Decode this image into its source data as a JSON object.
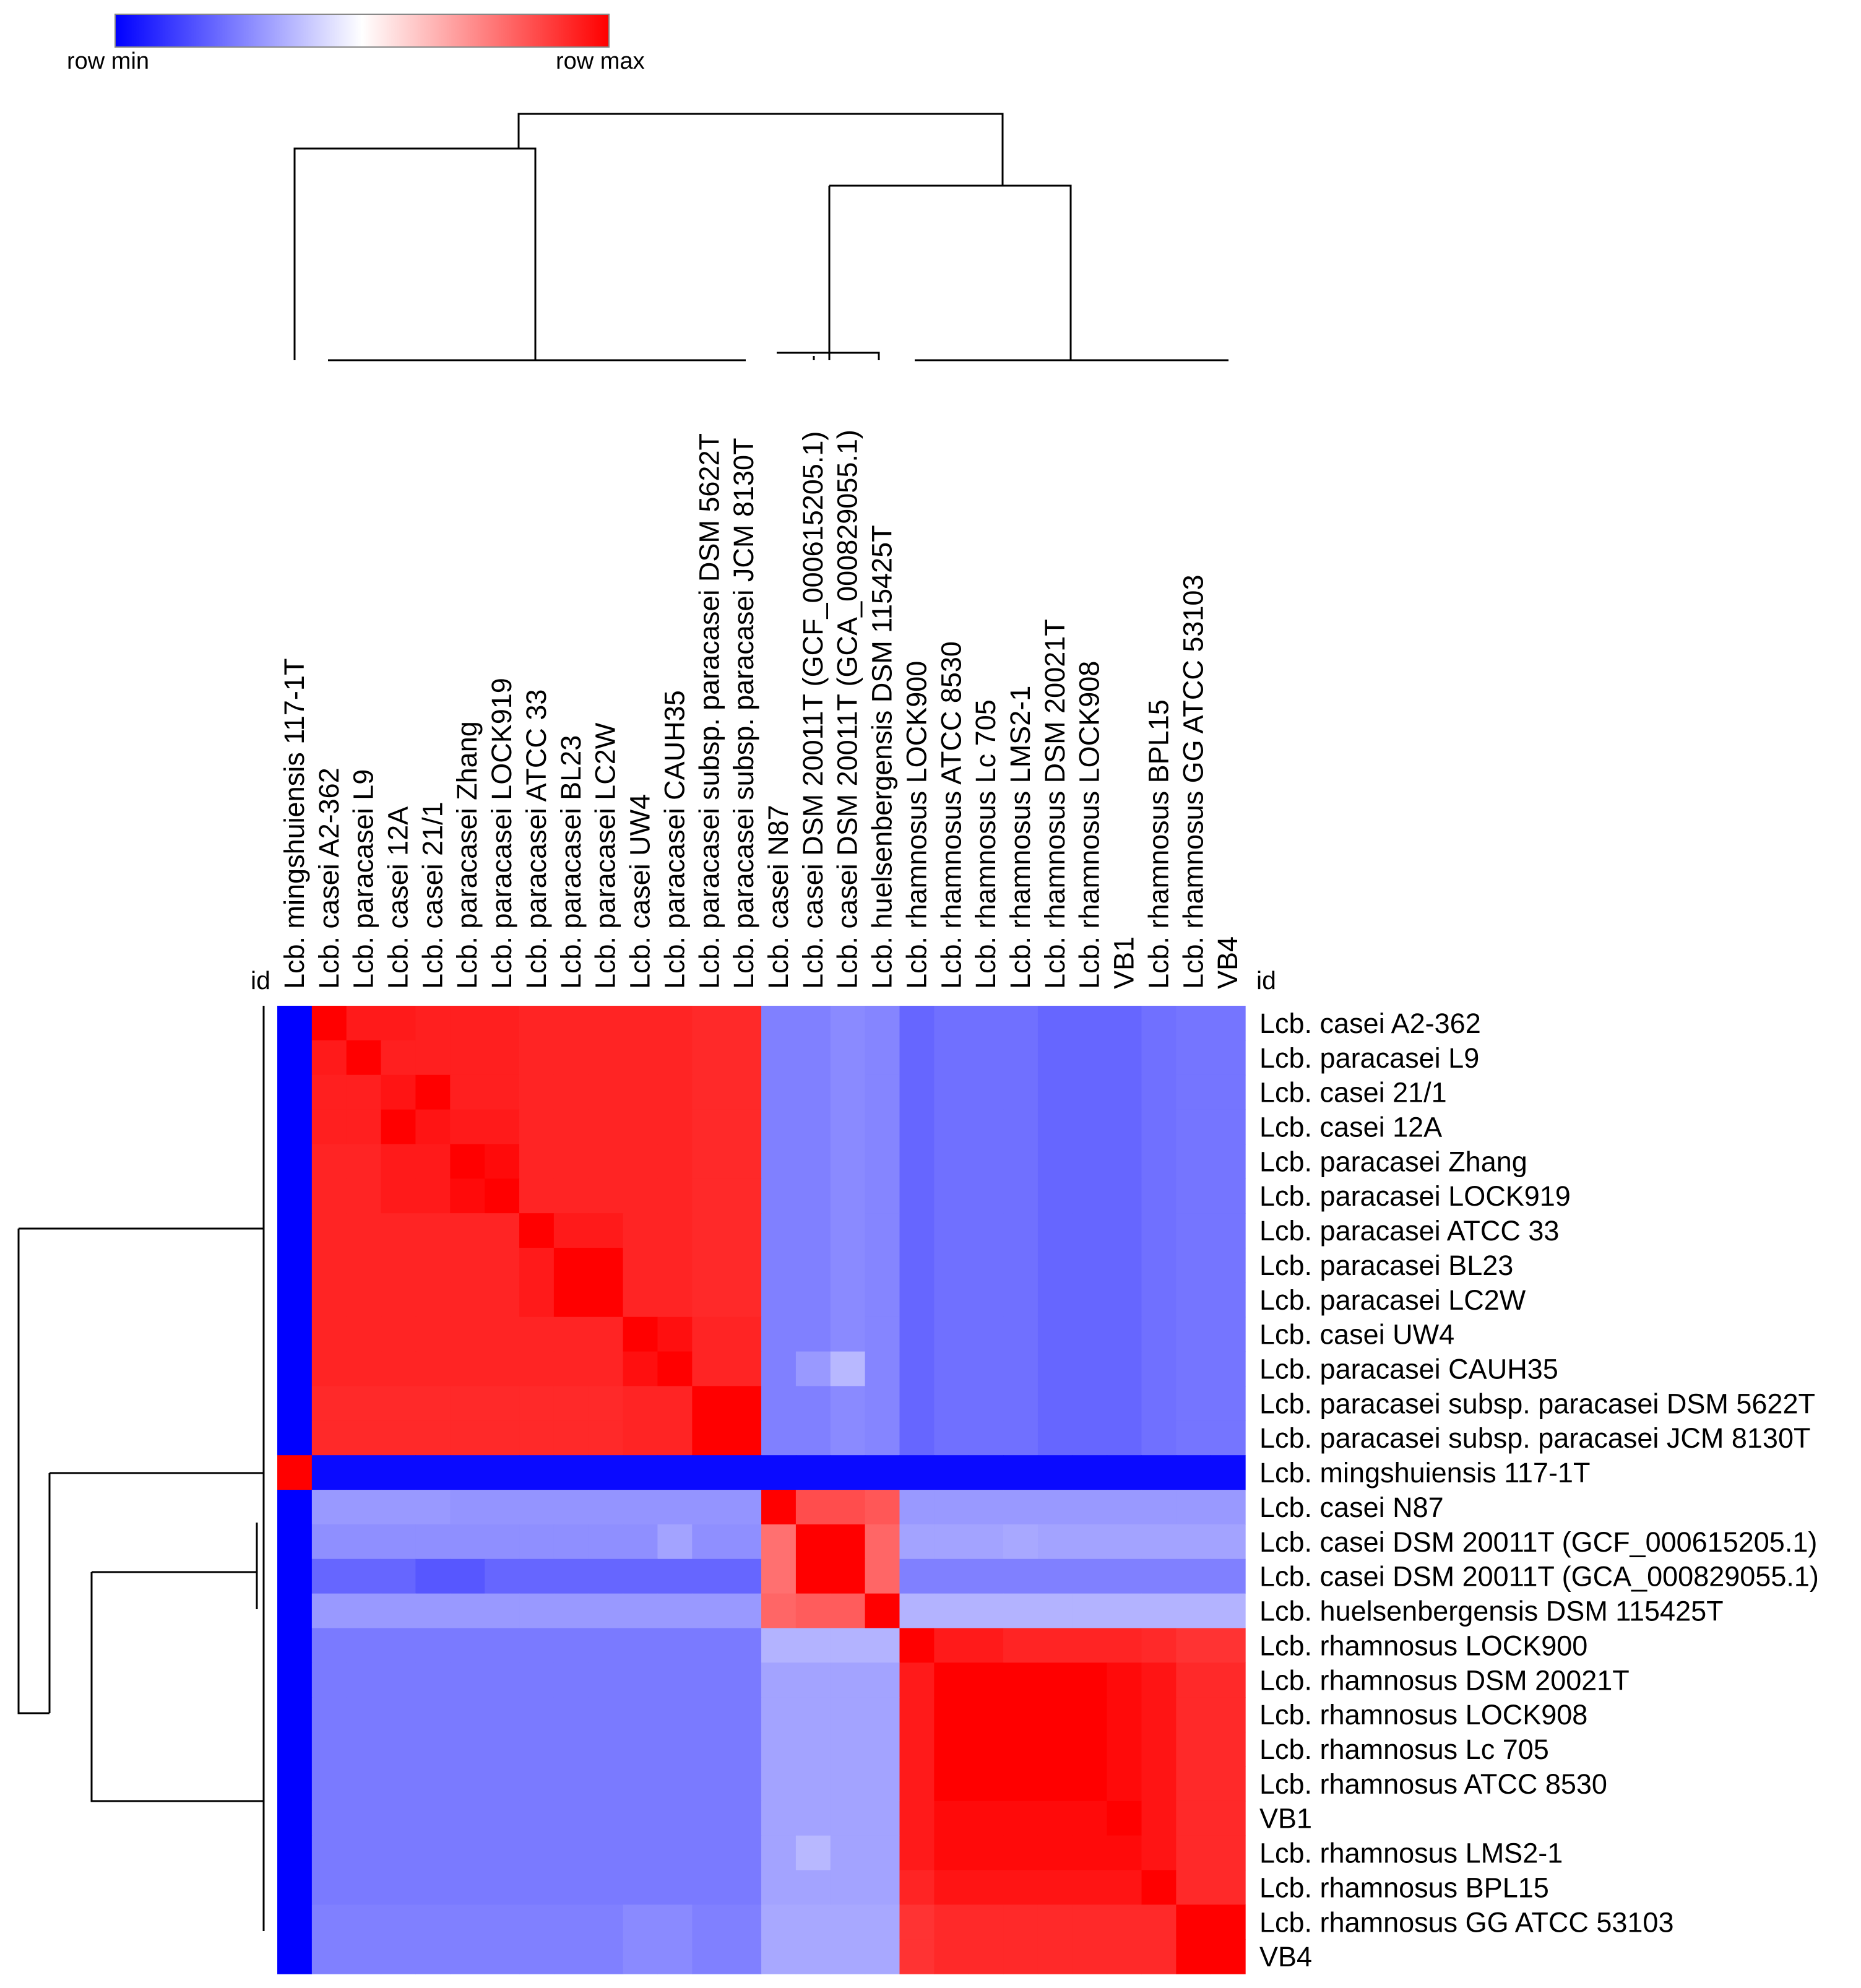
{
  "legend": {
    "min_label": "row min",
    "max_label": "row max",
    "min_color": "#0000ff",
    "mid_color": "#ffffff",
    "max_color": "#ff0000"
  },
  "id_label": "id",
  "chart_data": {
    "type": "heatmap",
    "title": "",
    "value_scale": "row-normalized (0 = row min, 1 = row max)",
    "columns": [
      "Lcb. mingshuiensis 117-1T",
      "Lcb. casei A2-362",
      "Lcb. paracasei L9",
      "Lcb. casei 12A",
      "Lcb. casei 21/1",
      "Lcb. paracasei Zhang",
      "Lcb. paracasei LOCK919",
      "Lcb. paracasei ATCC 33",
      "Lcb. paracasei BL23",
      "Lcb. paracasei LC2W",
      "Lcb. casei UW4",
      "Lcb. paracasei CAUH35",
      "Lcb. paracasei subsp. paracasei DSM 5622T",
      "Lcb. paracasei subsp. paracasei JCM 8130T",
      "Lcb. casei N87",
      "Lcb. casei DSM 20011T (GCF_000615205.1)",
      "Lcb. casei DSM 20011T (GCA_000829055.1)",
      "Lcb. huelsenbergensis DSM 115425T",
      "Lcb. rhamnosus LOCK900",
      "Lcb. rhamnosus ATCC 8530",
      "Lcb. rhamnosus Lc 705",
      "Lcb. rhamnosus LMS2-1",
      "Lcb. rhamnosus DSM 20021T",
      "Lcb. rhamnosus LOCK908",
      "VB1",
      "Lcb. rhamnosus BPL15",
      "Lcb. rhamnosus GG ATCC 53103",
      "VB4"
    ],
    "rows": [
      "Lcb. casei A2-362",
      "Lcb. paracasei L9",
      "Lcb. casei 21/1",
      "Lcb. casei 12A",
      "Lcb. paracasei Zhang",
      "Lcb. paracasei LOCK919",
      "Lcb. paracasei ATCC 33",
      "Lcb. paracasei BL23",
      "Lcb. paracasei LC2W",
      "Lcb. casei UW4",
      "Lcb. paracasei CAUH35",
      "Lcb. paracasei subsp. paracasei DSM 5622T",
      "Lcb. paracasei subsp. paracasei JCM 8130T",
      "Lcb. mingshuiensis 117-1T",
      "Lcb. casei N87",
      "Lcb. casei DSM 20011T (GCF_000615205.1)",
      "Lcb. casei DSM 20011T (GCA_000829055.1)",
      "Lcb. huelsenbergensis DSM 115425T",
      "Lcb. rhamnosus LOCK900",
      "Lcb. rhamnosus DSM 20021T",
      "Lcb. rhamnosus LOCK908",
      "Lcb. rhamnosus Lc 705",
      "Lcb. rhamnosus ATCC 8530",
      "VB1",
      "Lcb. rhamnosus LMS2-1",
      "Lcb. rhamnosus BPL15",
      "Lcb. rhamnosus GG ATCC 53103",
      "VB4"
    ],
    "values": [
      [
        0.0,
        1.0,
        0.95,
        0.95,
        0.94,
        0.94,
        0.94,
        0.93,
        0.93,
        0.93,
        0.93,
        0.93,
        0.92,
        0.92,
        0.25,
        0.25,
        0.27,
        0.26,
        0.2,
        0.22,
        0.22,
        0.22,
        0.2,
        0.2,
        0.2,
        0.22,
        0.23,
        0.23
      ],
      [
        0.0,
        0.95,
        1.0,
        0.94,
        0.94,
        0.94,
        0.94,
        0.93,
        0.93,
        0.93,
        0.93,
        0.93,
        0.92,
        0.92,
        0.25,
        0.25,
        0.27,
        0.26,
        0.2,
        0.22,
        0.22,
        0.22,
        0.2,
        0.2,
        0.2,
        0.22,
        0.23,
        0.23
      ],
      [
        0.0,
        0.94,
        0.94,
        0.96,
        1.0,
        0.94,
        0.94,
        0.93,
        0.93,
        0.93,
        0.93,
        0.93,
        0.92,
        0.92,
        0.25,
        0.25,
        0.27,
        0.26,
        0.2,
        0.22,
        0.22,
        0.22,
        0.2,
        0.2,
        0.2,
        0.22,
        0.23,
        0.23
      ],
      [
        0.0,
        0.94,
        0.94,
        1.0,
        0.96,
        0.95,
        0.95,
        0.93,
        0.93,
        0.93,
        0.93,
        0.93,
        0.92,
        0.92,
        0.25,
        0.25,
        0.27,
        0.26,
        0.2,
        0.22,
        0.22,
        0.22,
        0.2,
        0.2,
        0.2,
        0.22,
        0.23,
        0.23
      ],
      [
        0.0,
        0.93,
        0.93,
        0.95,
        0.95,
        1.0,
        0.98,
        0.93,
        0.93,
        0.93,
        0.93,
        0.93,
        0.92,
        0.92,
        0.25,
        0.25,
        0.27,
        0.26,
        0.2,
        0.22,
        0.22,
        0.22,
        0.2,
        0.2,
        0.2,
        0.22,
        0.23,
        0.23
      ],
      [
        0.0,
        0.93,
        0.93,
        0.95,
        0.95,
        0.98,
        1.0,
        0.93,
        0.93,
        0.93,
        0.93,
        0.93,
        0.92,
        0.92,
        0.25,
        0.25,
        0.27,
        0.26,
        0.2,
        0.22,
        0.22,
        0.22,
        0.2,
        0.2,
        0.2,
        0.22,
        0.23,
        0.23
      ],
      [
        0.0,
        0.93,
        0.93,
        0.93,
        0.93,
        0.93,
        0.93,
        1.0,
        0.95,
        0.95,
        0.93,
        0.93,
        0.92,
        0.92,
        0.25,
        0.25,
        0.27,
        0.26,
        0.2,
        0.22,
        0.22,
        0.22,
        0.2,
        0.2,
        0.2,
        0.22,
        0.23,
        0.23
      ],
      [
        0.0,
        0.93,
        0.93,
        0.93,
        0.93,
        0.93,
        0.93,
        0.95,
        1.0,
        1.0,
        0.93,
        0.93,
        0.92,
        0.92,
        0.25,
        0.25,
        0.27,
        0.26,
        0.2,
        0.22,
        0.22,
        0.22,
        0.2,
        0.2,
        0.2,
        0.22,
        0.23,
        0.23
      ],
      [
        0.0,
        0.93,
        0.93,
        0.93,
        0.93,
        0.93,
        0.93,
        0.95,
        1.0,
        1.0,
        0.93,
        0.93,
        0.92,
        0.92,
        0.25,
        0.25,
        0.27,
        0.26,
        0.2,
        0.22,
        0.22,
        0.22,
        0.2,
        0.2,
        0.2,
        0.22,
        0.23,
        0.23
      ],
      [
        0.0,
        0.93,
        0.93,
        0.93,
        0.93,
        0.93,
        0.93,
        0.93,
        0.93,
        0.93,
        1.0,
        0.97,
        0.93,
        0.93,
        0.25,
        0.25,
        0.27,
        0.26,
        0.2,
        0.22,
        0.22,
        0.22,
        0.2,
        0.2,
        0.2,
        0.22,
        0.23,
        0.23
      ],
      [
        0.0,
        0.93,
        0.93,
        0.93,
        0.93,
        0.93,
        0.93,
        0.93,
        0.93,
        0.93,
        0.97,
        1.0,
        0.93,
        0.93,
        0.25,
        0.3,
        0.36,
        0.26,
        0.2,
        0.22,
        0.22,
        0.22,
        0.2,
        0.2,
        0.2,
        0.22,
        0.23,
        0.23
      ],
      [
        0.0,
        0.92,
        0.92,
        0.92,
        0.92,
        0.92,
        0.92,
        0.92,
        0.92,
        0.92,
        0.93,
        0.93,
        1.0,
        1.0,
        0.25,
        0.25,
        0.27,
        0.26,
        0.2,
        0.22,
        0.22,
        0.22,
        0.2,
        0.2,
        0.2,
        0.22,
        0.23,
        0.23
      ],
      [
        0.0,
        0.92,
        0.92,
        0.92,
        0.92,
        0.92,
        0.92,
        0.92,
        0.92,
        0.92,
        0.93,
        0.93,
        1.0,
        1.0,
        0.25,
        0.25,
        0.27,
        0.26,
        0.2,
        0.22,
        0.22,
        0.22,
        0.2,
        0.2,
        0.2,
        0.22,
        0.23,
        0.23
      ],
      [
        1.0,
        0.02,
        0.02,
        0.02,
        0.02,
        0.02,
        0.02,
        0.02,
        0.02,
        0.02,
        0.02,
        0.02,
        0.02,
        0.02,
        0.02,
        0.02,
        0.02,
        0.02,
        0.02,
        0.02,
        0.02,
        0.02,
        0.02,
        0.02,
        0.02,
        0.02,
        0.02,
        0.02
      ],
      [
        0.0,
        0.3,
        0.3,
        0.3,
        0.3,
        0.29,
        0.29,
        0.29,
        0.29,
        0.29,
        0.29,
        0.29,
        0.29,
        0.29,
        1.0,
        0.85,
        0.85,
        0.83,
        0.3,
        0.3,
        0.3,
        0.3,
        0.3,
        0.3,
        0.3,
        0.3,
        0.3,
        0.3
      ],
      [
        0.0,
        0.28,
        0.28,
        0.28,
        0.28,
        0.28,
        0.28,
        0.28,
        0.28,
        0.28,
        0.28,
        0.32,
        0.28,
        0.28,
        0.78,
        1.0,
        1.0,
        0.8,
        0.32,
        0.32,
        0.32,
        0.33,
        0.32,
        0.32,
        0.32,
        0.32,
        0.32,
        0.32
      ],
      [
        0.0,
        0.2,
        0.2,
        0.2,
        0.17,
        0.17,
        0.2,
        0.2,
        0.2,
        0.2,
        0.2,
        0.2,
        0.2,
        0.2,
        0.78,
        1.0,
        1.0,
        0.8,
        0.25,
        0.25,
        0.25,
        0.25,
        0.25,
        0.25,
        0.25,
        0.25,
        0.25,
        0.25
      ],
      [
        0.0,
        0.3,
        0.3,
        0.3,
        0.3,
        0.3,
        0.3,
        0.3,
        0.3,
        0.3,
        0.3,
        0.3,
        0.3,
        0.3,
        0.8,
        0.82,
        0.82,
        1.0,
        0.35,
        0.35,
        0.35,
        0.35,
        0.35,
        0.35,
        0.35,
        0.35,
        0.35,
        0.35
      ],
      [
        0.0,
        0.24,
        0.24,
        0.24,
        0.24,
        0.24,
        0.24,
        0.24,
        0.24,
        0.24,
        0.24,
        0.24,
        0.24,
        0.24,
        0.35,
        0.35,
        0.35,
        0.35,
        1.0,
        0.95,
        0.95,
        0.93,
        0.93,
        0.93,
        0.93,
        0.92,
        0.9,
        0.9
      ],
      [
        0.0,
        0.24,
        0.24,
        0.24,
        0.24,
        0.24,
        0.24,
        0.24,
        0.24,
        0.24,
        0.24,
        0.24,
        0.24,
        0.24,
        0.32,
        0.32,
        0.32,
        0.32,
        0.95,
        1.0,
        1.0,
        1.0,
        1.0,
        1.0,
        0.98,
        0.96,
        0.92,
        0.92
      ],
      [
        0.0,
        0.24,
        0.24,
        0.24,
        0.24,
        0.24,
        0.24,
        0.24,
        0.24,
        0.24,
        0.24,
        0.24,
        0.24,
        0.24,
        0.32,
        0.32,
        0.32,
        0.32,
        0.95,
        1.0,
        1.0,
        1.0,
        1.0,
        1.0,
        0.98,
        0.96,
        0.92,
        0.92
      ],
      [
        0.0,
        0.24,
        0.24,
        0.24,
        0.24,
        0.24,
        0.24,
        0.24,
        0.24,
        0.24,
        0.24,
        0.24,
        0.24,
        0.24,
        0.32,
        0.32,
        0.32,
        0.32,
        0.95,
        1.0,
        1.0,
        1.0,
        1.0,
        1.0,
        0.98,
        0.96,
        0.92,
        0.92
      ],
      [
        0.0,
        0.24,
        0.24,
        0.24,
        0.24,
        0.24,
        0.24,
        0.24,
        0.24,
        0.24,
        0.24,
        0.24,
        0.24,
        0.24,
        0.32,
        0.32,
        0.32,
        0.32,
        0.95,
        1.0,
        1.0,
        1.0,
        1.0,
        1.0,
        0.98,
        0.96,
        0.92,
        0.92
      ],
      [
        0.0,
        0.24,
        0.24,
        0.24,
        0.24,
        0.24,
        0.24,
        0.24,
        0.24,
        0.24,
        0.24,
        0.24,
        0.24,
        0.24,
        0.32,
        0.32,
        0.32,
        0.32,
        0.95,
        0.98,
        0.98,
        0.98,
        0.98,
        0.98,
        1.0,
        0.96,
        0.92,
        0.92
      ],
      [
        0.0,
        0.24,
        0.24,
        0.24,
        0.24,
        0.24,
        0.24,
        0.24,
        0.24,
        0.24,
        0.24,
        0.24,
        0.24,
        0.24,
        0.32,
        0.36,
        0.32,
        0.32,
        0.95,
        0.98,
        0.98,
        0.98,
        0.98,
        0.98,
        0.98,
        0.96,
        0.92,
        0.92
      ],
      [
        0.0,
        0.24,
        0.24,
        0.24,
        0.24,
        0.24,
        0.24,
        0.24,
        0.24,
        0.24,
        0.24,
        0.24,
        0.24,
        0.24,
        0.32,
        0.32,
        0.32,
        0.32,
        0.93,
        0.96,
        0.96,
        0.96,
        0.96,
        0.96,
        0.96,
        1.0,
        0.92,
        0.92
      ],
      [
        0.0,
        0.25,
        0.25,
        0.25,
        0.25,
        0.25,
        0.25,
        0.25,
        0.25,
        0.25,
        0.27,
        0.27,
        0.25,
        0.25,
        0.33,
        0.33,
        0.33,
        0.33,
        0.9,
        0.92,
        0.92,
        0.92,
        0.92,
        0.92,
        0.92,
        0.92,
        1.0,
        1.0
      ],
      [
        0.0,
        0.25,
        0.25,
        0.25,
        0.25,
        0.25,
        0.25,
        0.25,
        0.25,
        0.25,
        0.27,
        0.27,
        0.25,
        0.25,
        0.33,
        0.33,
        0.33,
        0.33,
        0.9,
        0.92,
        0.92,
        0.92,
        0.92,
        0.92,
        0.92,
        0.92,
        1.0,
        1.0
      ]
    ]
  }
}
